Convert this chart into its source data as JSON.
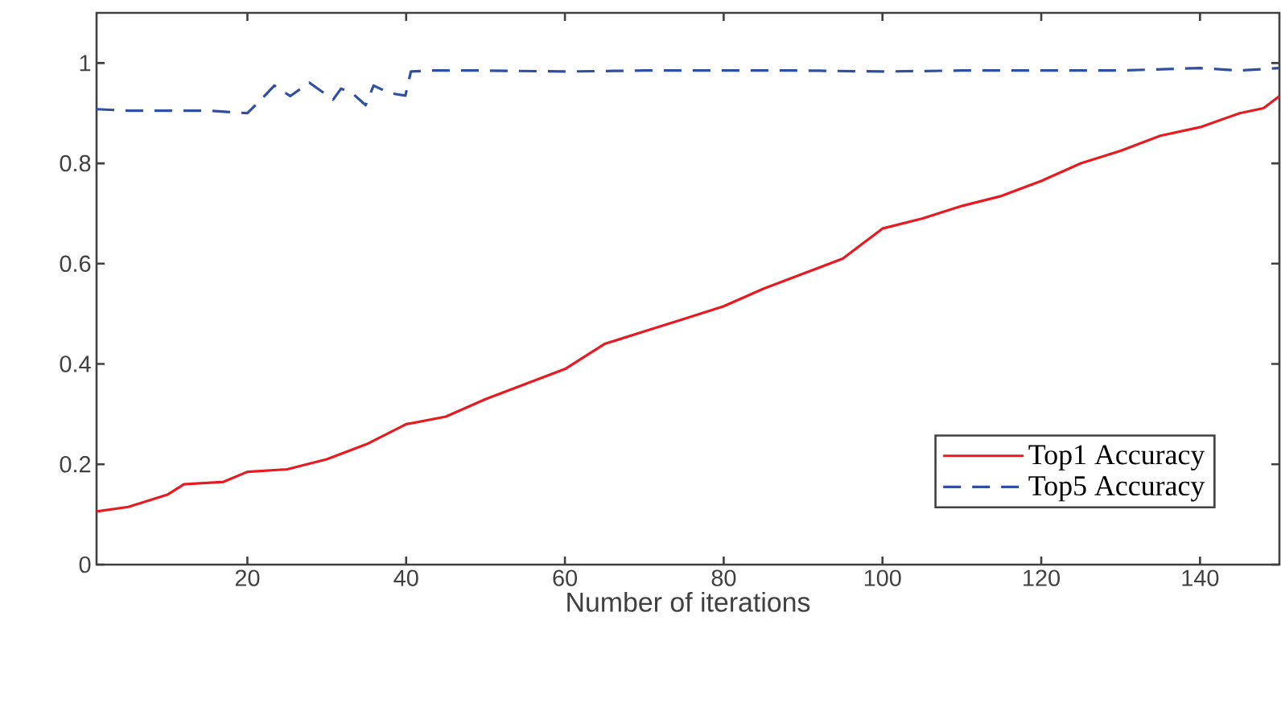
{
  "chart_data": {
    "type": "line",
    "xlabel": "Number of iterations",
    "xlim": [
      1,
      150
    ],
    "ylim": [
      0,
      1.1
    ],
    "xticks": [
      20,
      40,
      60,
      80,
      100,
      120,
      140
    ],
    "yticks": [
      0,
      0.2,
      0.4,
      0.6,
      0.8,
      1
    ],
    "legend": "bottom right",
    "marker": "none",
    "series": [
      {
        "name": "Top1 Accuracy",
        "color": "#e8191f",
        "line_style": "solid",
        "x": [
          1,
          5,
          8,
          10,
          12,
          17,
          20,
          25,
          30,
          35,
          40,
          45,
          50,
          55,
          60,
          65,
          70,
          75,
          80,
          85,
          90,
          95,
          100,
          105,
          110,
          115,
          120,
          125,
          130,
          135,
          140,
          145,
          148,
          150
        ],
        "values": [
          0.106,
          0.115,
          0.13,
          0.14,
          0.16,
          0.165,
          0.185,
          0.19,
          0.21,
          0.24,
          0.28,
          0.295,
          0.33,
          0.36,
          0.39,
          0.44,
          0.465,
          0.49,
          0.515,
          0.55,
          0.58,
          0.61,
          0.67,
          0.69,
          0.715,
          0.735,
          0.765,
          0.8,
          0.825,
          0.855,
          0.872,
          0.9,
          0.91,
          0.934
        ]
      },
      {
        "name": "Top5 Accuracy",
        "color": "#2e4fa3",
        "line_style": "dashed",
        "x": [
          1,
          5,
          10,
          15,
          20,
          21.7,
          23.4,
          25.4,
          27.8,
          30.8,
          31.8,
          33.2,
          34.9,
          35.9,
          37.9,
          39.9,
          40.6,
          43.3,
          50,
          60,
          70,
          80,
          90,
          100,
          110,
          120,
          130,
          140,
          145,
          150
        ],
        "values": [
          0.908,
          0.905,
          0.905,
          0.905,
          0.9,
          0.927,
          0.955,
          0.934,
          0.961,
          0.927,
          0.949,
          0.94,
          0.916,
          0.955,
          0.94,
          0.935,
          0.983,
          0.985,
          0.985,
          0.983,
          0.985,
          0.985,
          0.985,
          0.983,
          0.985,
          0.985,
          0.985,
          0.99,
          0.985,
          0.99
        ]
      }
    ]
  }
}
